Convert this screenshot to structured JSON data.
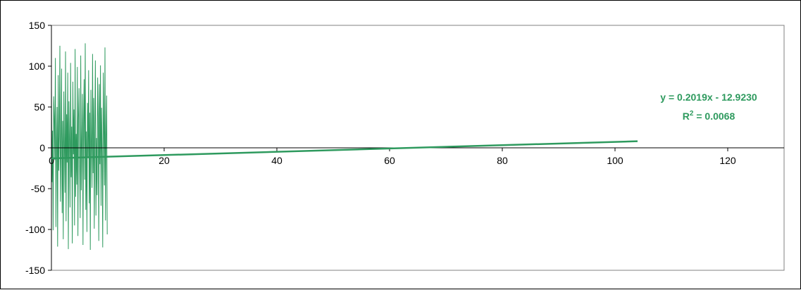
{
  "chart_data": {
    "type": "line",
    "title": "",
    "xlabel": "",
    "ylabel": "",
    "xlim": [
      0,
      130
    ],
    "ylim": [
      -150,
      150
    ],
    "x_ticks": [
      0,
      20,
      40,
      60,
      80,
      100,
      120
    ],
    "x_tick_labels": [
      "0",
      "20",
      "40",
      "60",
      "80",
      "100",
      "120"
    ],
    "y_ticks": [
      -150,
      -100,
      -50,
      0,
      50,
      100,
      150
    ],
    "y_tick_labels": [
      "-150",
      "-100",
      "-50",
      "0",
      "50",
      "100",
      "150"
    ],
    "grid": false,
    "series": [
      {
        "color": "#2e9a5e",
        "x_start": 0,
        "x_step": 0.1,
        "values": [
          76,
          -42,
          21,
          -101,
          63,
          38,
          -15,
          110,
          -97,
          5,
          50,
          -121,
          89,
          -28,
          14,
          125,
          -66,
          -3,
          97,
          -80,
          33,
          -112,
          69,
          2,
          -55,
          118,
          -90,
          41,
          -18,
          92,
          -124,
          57,
          10,
          -73,
          104,
          -36,
          26,
          -117,
          81,
          -8,
          47,
          -95,
          121,
          -60,
          17,
          -45,
          99,
          -108,
          36,
          73,
          -22,
          -86,
          113,
          -52,
          8,
          66,
          -119,
          30,
          84,
          -39,
          128,
          -76,
          20,
          -103,
          55,
          -11,
          95,
          -68,
          43,
          -125,
          71,
          4,
          -49,
          115,
          -31,
          61,
          -99,
          24,
          107,
          -83,
          12,
          -58,
          86,
          39,
          -114,
          78,
          -20,
          101,
          -71,
          49,
          -6,
          -122,
          92,
          28,
          -46,
          123,
          -89,
          15,
          64,
          -106
        ]
      }
    ],
    "trendline": {
      "type": "linear",
      "slope": 0.2019,
      "intercept": -12.923,
      "x_range": [
        0,
        104
      ],
      "color": "#2e9a5e",
      "equation_label": "y = 0.2019x - 12.9230",
      "r2_prefix": "R",
      "r2_sup": "2",
      "r2_value": " = 0.0068"
    }
  }
}
